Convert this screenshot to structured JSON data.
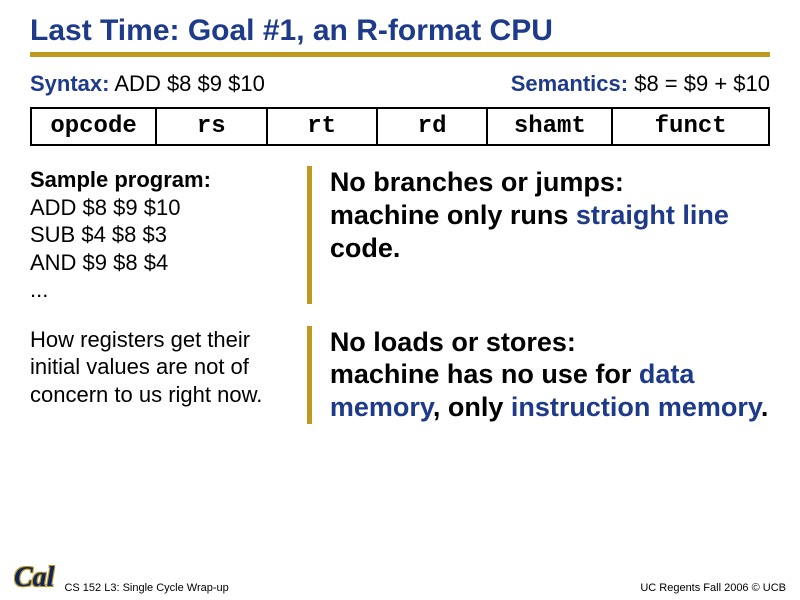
{
  "title": "Last Time: Goal #1, an R-format CPU",
  "syntax": {
    "label": "Syntax:",
    "text": " ADD $8 $9 $10"
  },
  "semantics": {
    "label": "Semantics:",
    "text": " $8 = $9 + $10"
  },
  "fields": {
    "opcode": "opcode",
    "rs": "rs",
    "rt": "rt",
    "rd": "rd",
    "shamt": "shamt",
    "funct": "funct"
  },
  "sample": {
    "header": "Sample program:",
    "l1": "ADD $8 $9 $10",
    "l2": "SUB $4 $8 $3",
    "l3": "AND $9 $8 $4",
    "l4": "..."
  },
  "regnote": "How registers get their initial values are not of concern to us right now.",
  "right1": {
    "t1": "No branches or jumps:",
    "t2": "machine only runs ",
    "kw": "straight line",
    "t3": " code."
  },
  "right2": {
    "t1": "No loads or stores:",
    "t2": "machine has no use for ",
    "kw1": "data memory",
    "t3": ", only ",
    "kw2": "instruction memory",
    "t4": "."
  },
  "footer": {
    "logo": "Cal",
    "left": "CS 152 L3: Single Cycle Wrap-up",
    "right": "UC Regents Fall 2006 © UCB"
  },
  "colors": {
    "heading_blue": "#1e3a8a",
    "accent_gold": "#c09820",
    "text_black": "#000000",
    "background": "#ffffff"
  }
}
